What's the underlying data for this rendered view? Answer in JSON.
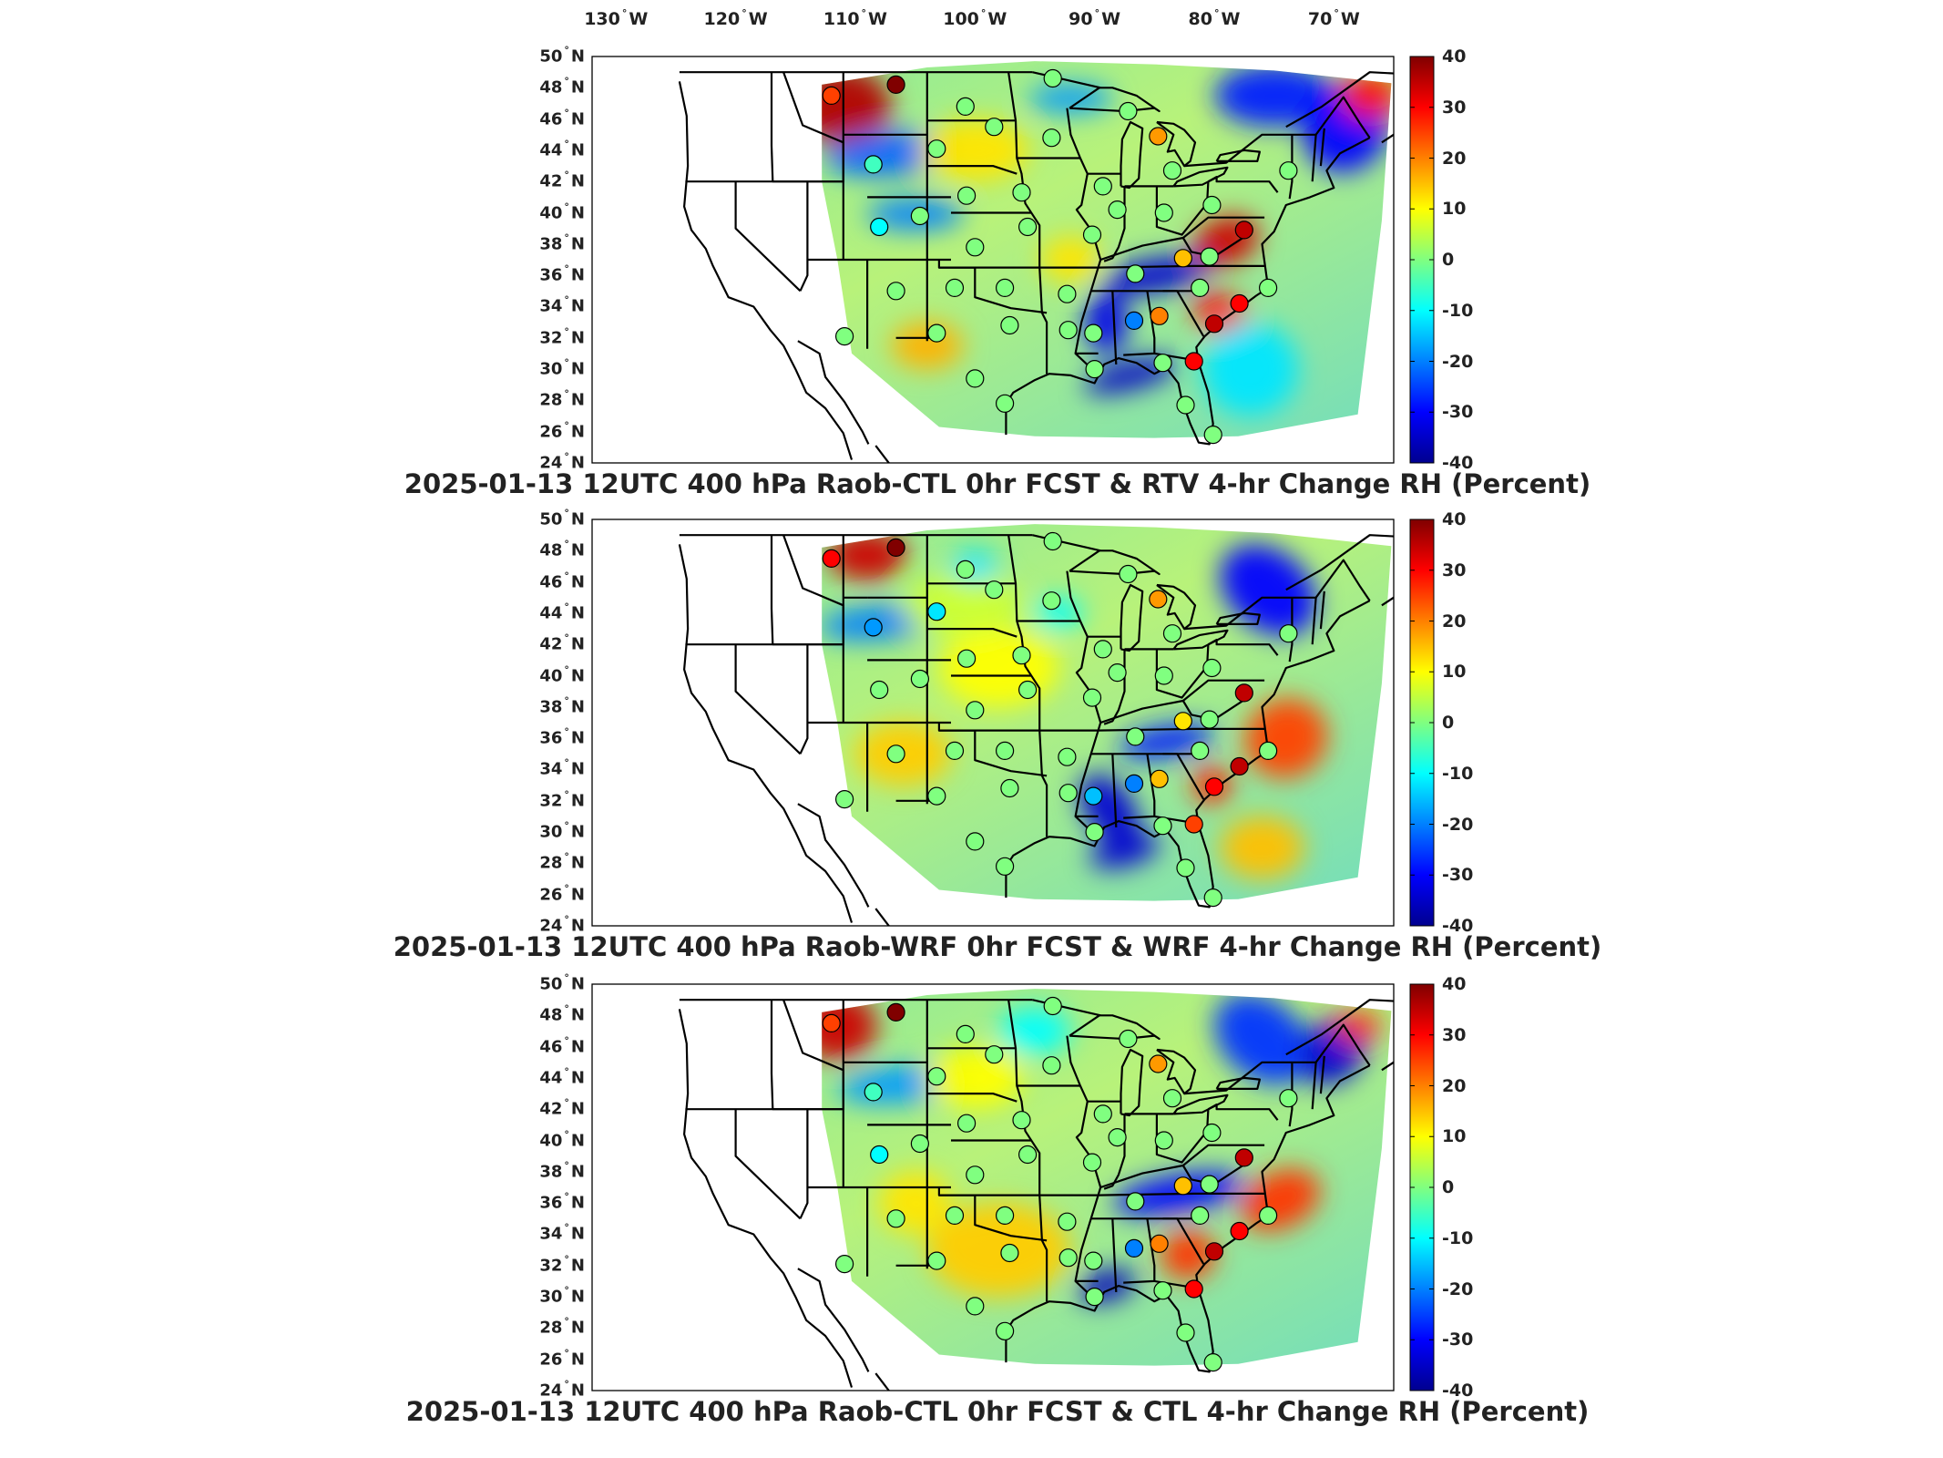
{
  "figure": {
    "longitude_labels": [
      {
        "deg": "130",
        "hemi": "W",
        "lon": -130
      },
      {
        "deg": "120",
        "hemi": "W",
        "lon": -120
      },
      {
        "deg": "110",
        "hemi": "W",
        "lon": -110
      },
      {
        "deg": "100",
        "hemi": "W",
        "lon": -100
      },
      {
        "deg": "90",
        "hemi": "W",
        "lon": -90
      },
      {
        "deg": "80",
        "hemi": "W",
        "lon": -80
      },
      {
        "deg": "70",
        "hemi": "W",
        "lon": -70
      }
    ],
    "latitude_labels": [
      {
        "deg": "50",
        "hemi": "N",
        "lat": 50
      },
      {
        "deg": "48",
        "hemi": "N",
        "lat": 48
      },
      {
        "deg": "46",
        "hemi": "N",
        "lat": 46
      },
      {
        "deg": "44",
        "hemi": "N",
        "lat": 44
      },
      {
        "deg": "42",
        "hemi": "N",
        "lat": 42
      },
      {
        "deg": "40",
        "hemi": "N",
        "lat": 40
      },
      {
        "deg": "38",
        "hemi": "N",
        "lat": 38
      },
      {
        "deg": "36",
        "hemi": "N",
        "lat": 36
      },
      {
        "deg": "34",
        "hemi": "N",
        "lat": 34
      },
      {
        "deg": "32",
        "hemi": "N",
        "lat": 32
      },
      {
        "deg": "30",
        "hemi": "N",
        "lat": 30
      },
      {
        "deg": "28",
        "hemi": "N",
        "lat": 28
      },
      {
        "deg": "26",
        "hemi": "N",
        "lat": 26
      },
      {
        "deg": "24",
        "hemi": "N",
        "lat": 24
      }
    ],
    "colorbar": {
      "ticks": [
        "40",
        "30",
        "20",
        "10",
        "0",
        "-10",
        "-20",
        "-30",
        "-40"
      ],
      "range": [
        -40,
        40
      ],
      "colormap": [
        "#00008f",
        "#0000ff",
        "#0080ff",
        "#00ffff",
        "#80ff80",
        "#ffff00",
        "#ff8000",
        "#ff0000",
        "#800000"
      ]
    }
  },
  "chart_data": [
    {
      "type": "heatmap",
      "title": "2025-01-13 12UTC 400 hPa Raob-CTL 0hr FCST & RTV 4-hr Change RH (Percent)",
      "date": "2025-01-13",
      "time": "12UTC",
      "level": "400 hPa",
      "units": "Percent",
      "xlim": [
        -132,
        -65
      ],
      "ylim": [
        24,
        50
      ],
      "clim": [
        -40,
        40
      ],
      "raob_points": [
        {
          "lon": -112.0,
          "lat": 47.5,
          "value": 25
        },
        {
          "lon": -106.6,
          "lat": 48.2,
          "value": 40
        },
        {
          "lon": -100.8,
          "lat": 46.8,
          "value": 0
        },
        {
          "lon": -98.4,
          "lat": 45.5,
          "value": 0
        },
        {
          "lon": -108.5,
          "lat": 43.1,
          "value": -5
        },
        {
          "lon": -103.2,
          "lat": 44.1,
          "value": 0
        },
        {
          "lon": -93.6,
          "lat": 44.8,
          "value": 0
        },
        {
          "lon": -84.7,
          "lat": 44.9,
          "value": 18
        },
        {
          "lon": -83.5,
          "lat": 42.7,
          "value": 0
        },
        {
          "lon": -73.8,
          "lat": 42.7,
          "value": 0
        },
        {
          "lon": -96.1,
          "lat": 41.3,
          "value": 0
        },
        {
          "lon": -100.7,
          "lat": 41.1,
          "value": 0
        },
        {
          "lon": -89.3,
          "lat": 41.7,
          "value": 0
        },
        {
          "lon": -88.1,
          "lat": 40.2,
          "value": 0
        },
        {
          "lon": -84.2,
          "lat": 40.0,
          "value": 0
        },
        {
          "lon": -80.2,
          "lat": 40.5,
          "value": 0
        },
        {
          "lon": -108.0,
          "lat": 39.1,
          "value": -10
        },
        {
          "lon": -104.6,
          "lat": 39.8,
          "value": 0
        },
        {
          "lon": -95.6,
          "lat": 39.1,
          "value": 0
        },
        {
          "lon": -100.0,
          "lat": 37.8,
          "value": 0
        },
        {
          "lon": -90.2,
          "lat": 38.6,
          "value": 0
        },
        {
          "lon": -86.6,
          "lat": 36.1,
          "value": 0
        },
        {
          "lon": -82.6,
          "lat": 37.1,
          "value": 15
        },
        {
          "lon": -77.5,
          "lat": 38.9,
          "value": 35
        },
        {
          "lon": -80.4,
          "lat": 37.2,
          "value": 0
        },
        {
          "lon": -75.5,
          "lat": 35.2,
          "value": 0
        },
        {
          "lon": -77.9,
          "lat": 34.2,
          "value": 30
        },
        {
          "lon": -80.0,
          "lat": 32.9,
          "value": 35
        },
        {
          "lon": -81.2,
          "lat": 35.2,
          "value": 0
        },
        {
          "lon": -84.6,
          "lat": 33.4,
          "value": 20
        },
        {
          "lon": -86.7,
          "lat": 33.1,
          "value": -20
        },
        {
          "lon": -90.1,
          "lat": 32.3,
          "value": 0
        },
        {
          "lon": -92.3,
          "lat": 34.8,
          "value": 0
        },
        {
          "lon": -97.5,
          "lat": 35.2,
          "value": 0
        },
        {
          "lon": -101.7,
          "lat": 35.2,
          "value": 0
        },
        {
          "lon": -106.6,
          "lat": 35.0,
          "value": 0
        },
        {
          "lon": -110.9,
          "lat": 32.1,
          "value": 0
        },
        {
          "lon": -103.2,
          "lat": 32.3,
          "value": 0
        },
        {
          "lon": -97.1,
          "lat": 32.8,
          "value": 0
        },
        {
          "lon": -92.2,
          "lat": 32.5,
          "value": 0
        },
        {
          "lon": -100.0,
          "lat": 29.4,
          "value": 0
        },
        {
          "lon": -97.5,
          "lat": 27.8,
          "value": 0
        },
        {
          "lon": -90.0,
          "lat": 30.0,
          "value": 0
        },
        {
          "lon": -84.3,
          "lat": 30.4,
          "value": 0
        },
        {
          "lon": -81.7,
          "lat": 30.5,
          "value": 30
        },
        {
          "lon": -82.4,
          "lat": 27.7,
          "value": 0
        },
        {
          "lon": -80.1,
          "lat": 25.8,
          "value": 0
        },
        {
          "lon": -87.2,
          "lat": 46.5,
          "value": 0
        },
        {
          "lon": -93.5,
          "lat": 48.6,
          "value": 0
        }
      ]
    },
    {
      "type": "heatmap",
      "title": "2025-01-13 12UTC 400 hPa Raob-WRF 0hr FCST & WRF 4-hr Change RH (Percent)",
      "date": "2025-01-13",
      "time": "12UTC",
      "level": "400 hPa",
      "units": "Percent",
      "xlim": [
        -132,
        -65
      ],
      "ylim": [
        24,
        50
      ],
      "clim": [
        -40,
        40
      ],
      "raob_points": [
        {
          "lon": -112.0,
          "lat": 47.5,
          "value": 30
        },
        {
          "lon": -106.6,
          "lat": 48.2,
          "value": 40
        },
        {
          "lon": -100.8,
          "lat": 46.8,
          "value": 0
        },
        {
          "lon": -98.4,
          "lat": 45.5,
          "value": 0
        },
        {
          "lon": -108.5,
          "lat": 43.1,
          "value": -18
        },
        {
          "lon": -103.2,
          "lat": 44.1,
          "value": -12
        },
        {
          "lon": -93.6,
          "lat": 44.8,
          "value": 0
        },
        {
          "lon": -84.7,
          "lat": 44.9,
          "value": 18
        },
        {
          "lon": -83.5,
          "lat": 42.7,
          "value": 0
        },
        {
          "lon": -73.8,
          "lat": 42.7,
          "value": 0
        },
        {
          "lon": -96.1,
          "lat": 41.3,
          "value": 0
        },
        {
          "lon": -100.7,
          "lat": 41.1,
          "value": 0
        },
        {
          "lon": -89.3,
          "lat": 41.7,
          "value": 0
        },
        {
          "lon": -88.1,
          "lat": 40.2,
          "value": 0
        },
        {
          "lon": -84.2,
          "lat": 40.0,
          "value": 0
        },
        {
          "lon": -80.2,
          "lat": 40.5,
          "value": 0
        },
        {
          "lon": -108.0,
          "lat": 39.1,
          "value": 0
        },
        {
          "lon": -104.6,
          "lat": 39.8,
          "value": 0
        },
        {
          "lon": -95.6,
          "lat": 39.1,
          "value": 0
        },
        {
          "lon": -100.0,
          "lat": 37.8,
          "value": 0
        },
        {
          "lon": -90.2,
          "lat": 38.6,
          "value": 0
        },
        {
          "lon": -86.6,
          "lat": 36.1,
          "value": 0
        },
        {
          "lon": -82.6,
          "lat": 37.1,
          "value": 12
        },
        {
          "lon": -77.5,
          "lat": 38.9,
          "value": 35
        },
        {
          "lon": -80.4,
          "lat": 37.2,
          "value": 0
        },
        {
          "lon": -75.5,
          "lat": 35.2,
          "value": 0
        },
        {
          "lon": -77.9,
          "lat": 34.2,
          "value": 35
        },
        {
          "lon": -80.0,
          "lat": 32.9,
          "value": 30
        },
        {
          "lon": -81.2,
          "lat": 35.2,
          "value": 0
        },
        {
          "lon": -84.6,
          "lat": 33.4,
          "value": 15
        },
        {
          "lon": -86.7,
          "lat": 33.1,
          "value": -20
        },
        {
          "lon": -90.1,
          "lat": 32.3,
          "value": -15
        },
        {
          "lon": -92.3,
          "lat": 34.8,
          "value": 0
        },
        {
          "lon": -97.5,
          "lat": 35.2,
          "value": 0
        },
        {
          "lon": -101.7,
          "lat": 35.2,
          "value": 0
        },
        {
          "lon": -106.6,
          "lat": 35.0,
          "value": 0
        },
        {
          "lon": -110.9,
          "lat": 32.1,
          "value": 0
        },
        {
          "lon": -103.2,
          "lat": 32.3,
          "value": 0
        },
        {
          "lon": -97.1,
          "lat": 32.8,
          "value": 0
        },
        {
          "lon": -92.2,
          "lat": 32.5,
          "value": 0
        },
        {
          "lon": -100.0,
          "lat": 29.4,
          "value": 0
        },
        {
          "lon": -97.5,
          "lat": 27.8,
          "value": 0
        },
        {
          "lon": -90.0,
          "lat": 30.0,
          "value": 0
        },
        {
          "lon": -84.3,
          "lat": 30.4,
          "value": 0
        },
        {
          "lon": -81.7,
          "lat": 30.5,
          "value": 25
        },
        {
          "lon": -82.4,
          "lat": 27.7,
          "value": 0
        },
        {
          "lon": -80.1,
          "lat": 25.8,
          "value": 0
        },
        {
          "lon": -87.2,
          "lat": 46.5,
          "value": 0
        },
        {
          "lon": -93.5,
          "lat": 48.6,
          "value": 0
        }
      ]
    },
    {
      "type": "heatmap",
      "title": "2025-01-13 12UTC 400 hPa Raob-CTL 0hr FCST & CTL 4-hr Change RH (Percent)",
      "date": "2025-01-13",
      "time": "12UTC",
      "level": "400 hPa",
      "units": "Percent",
      "xlim": [
        -132,
        -65
      ],
      "ylim": [
        24,
        50
      ],
      "clim": [
        -40,
        40
      ],
      "raob_points": [
        {
          "lon": -112.0,
          "lat": 47.5,
          "value": 25
        },
        {
          "lon": -106.6,
          "lat": 48.2,
          "value": 40
        },
        {
          "lon": -100.8,
          "lat": 46.8,
          "value": 0
        },
        {
          "lon": -98.4,
          "lat": 45.5,
          "value": 0
        },
        {
          "lon": -108.5,
          "lat": 43.1,
          "value": -5
        },
        {
          "lon": -103.2,
          "lat": 44.1,
          "value": 0
        },
        {
          "lon": -93.6,
          "lat": 44.8,
          "value": 0
        },
        {
          "lon": -84.7,
          "lat": 44.9,
          "value": 18
        },
        {
          "lon": -83.5,
          "lat": 42.7,
          "value": 0
        },
        {
          "lon": -73.8,
          "lat": 42.7,
          "value": 0
        },
        {
          "lon": -96.1,
          "lat": 41.3,
          "value": 0
        },
        {
          "lon": -100.7,
          "lat": 41.1,
          "value": 0
        },
        {
          "lon": -89.3,
          "lat": 41.7,
          "value": 0
        },
        {
          "lon": -88.1,
          "lat": 40.2,
          "value": 0
        },
        {
          "lon": -84.2,
          "lat": 40.0,
          "value": 0
        },
        {
          "lon": -80.2,
          "lat": 40.5,
          "value": 0
        },
        {
          "lon": -108.0,
          "lat": 39.1,
          "value": -10
        },
        {
          "lon": -104.6,
          "lat": 39.8,
          "value": 0
        },
        {
          "lon": -95.6,
          "lat": 39.1,
          "value": 0
        },
        {
          "lon": -100.0,
          "lat": 37.8,
          "value": 0
        },
        {
          "lon": -90.2,
          "lat": 38.6,
          "value": 0
        },
        {
          "lon": -86.6,
          "lat": 36.1,
          "value": 0
        },
        {
          "lon": -82.6,
          "lat": 37.1,
          "value": 15
        },
        {
          "lon": -77.5,
          "lat": 38.9,
          "value": 35
        },
        {
          "lon": -80.4,
          "lat": 37.2,
          "value": 0
        },
        {
          "lon": -75.5,
          "lat": 35.2,
          "value": 0
        },
        {
          "lon": -77.9,
          "lat": 34.2,
          "value": 30
        },
        {
          "lon": -80.0,
          "lat": 32.9,
          "value": 35
        },
        {
          "lon": -81.2,
          "lat": 35.2,
          "value": 0
        },
        {
          "lon": -84.6,
          "lat": 33.4,
          "value": 20
        },
        {
          "lon": -86.7,
          "lat": 33.1,
          "value": -20
        },
        {
          "lon": -90.1,
          "lat": 32.3,
          "value": 0
        },
        {
          "lon": -92.3,
          "lat": 34.8,
          "value": 0
        },
        {
          "lon": -97.5,
          "lat": 35.2,
          "value": 0
        },
        {
          "lon": -101.7,
          "lat": 35.2,
          "value": 0
        },
        {
          "lon": -106.6,
          "lat": 35.0,
          "value": 0
        },
        {
          "lon": -110.9,
          "lat": 32.1,
          "value": 0
        },
        {
          "lon": -103.2,
          "lat": 32.3,
          "value": 0
        },
        {
          "lon": -97.1,
          "lat": 32.8,
          "value": 0
        },
        {
          "lon": -92.2,
          "lat": 32.5,
          "value": 0
        },
        {
          "lon": -100.0,
          "lat": 29.4,
          "value": 0
        },
        {
          "lon": -97.5,
          "lat": 27.8,
          "value": 0
        },
        {
          "lon": -90.0,
          "lat": 30.0,
          "value": 0
        },
        {
          "lon": -84.3,
          "lat": 30.4,
          "value": 0
        },
        {
          "lon": -81.7,
          "lat": 30.5,
          "value": 30
        },
        {
          "lon": -82.4,
          "lat": 27.7,
          "value": 0
        },
        {
          "lon": -80.1,
          "lat": 25.8,
          "value": 0
        },
        {
          "lon": -87.2,
          "lat": 46.5,
          "value": 0
        },
        {
          "lon": -93.5,
          "lat": 48.6,
          "value": 0
        }
      ]
    }
  ]
}
